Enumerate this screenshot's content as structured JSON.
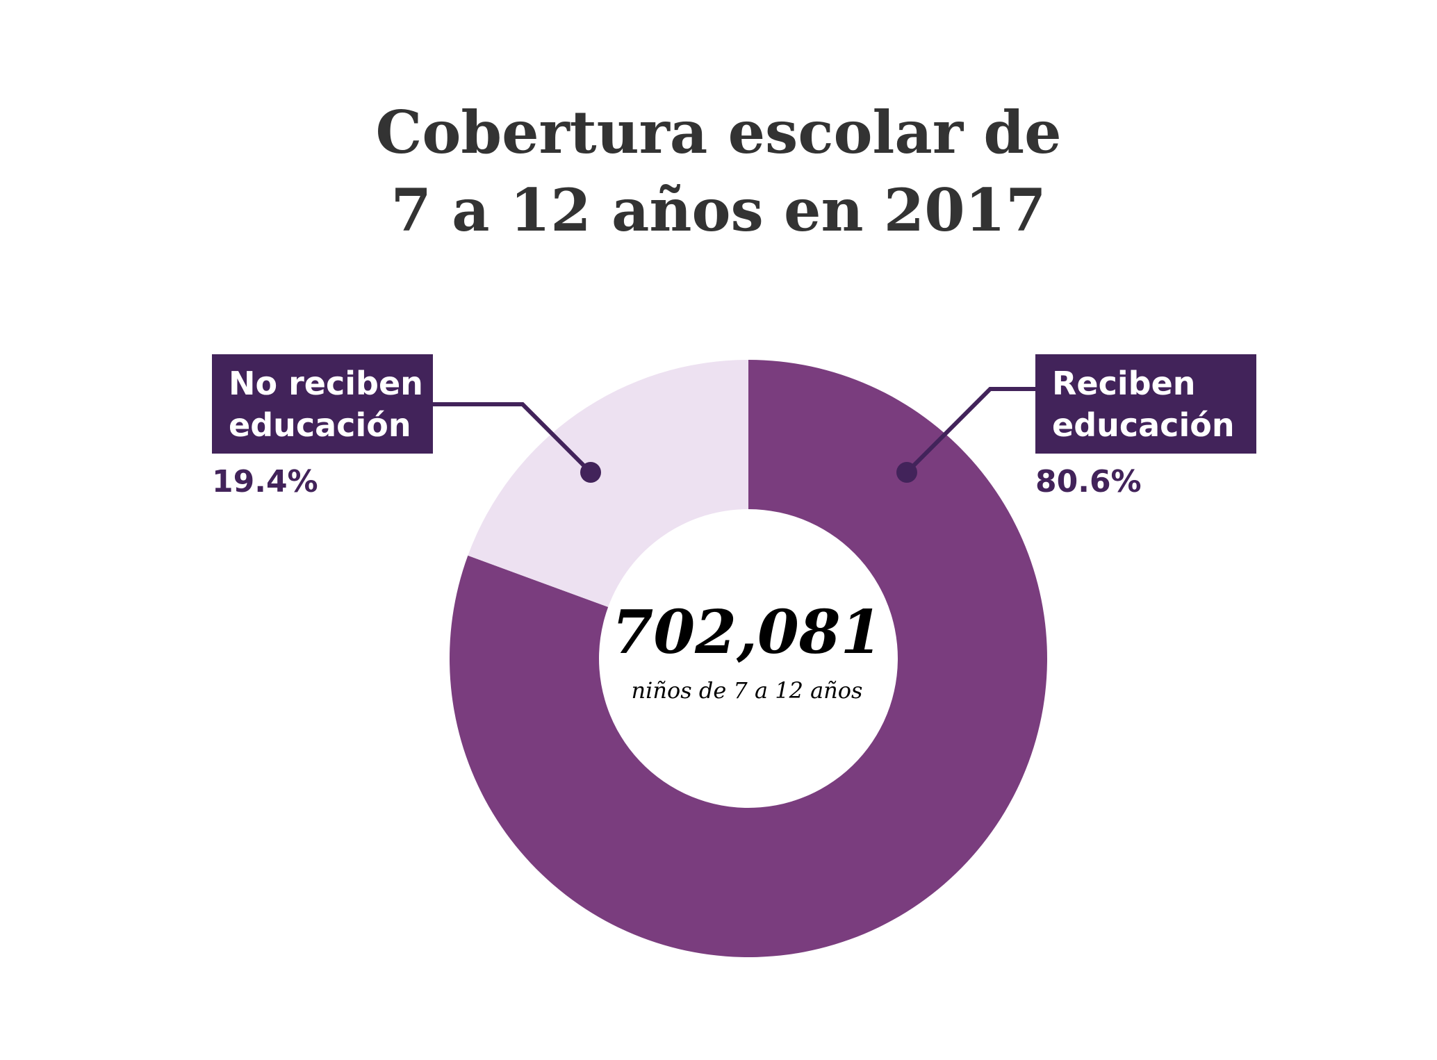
{
  "chart_data": {
    "type": "pie",
    "title": [
      "Cobertura escolar de",
      "7 a 12 años en 2017"
    ],
    "slices": [
      {
        "label": [
          "Reciben",
          "educación"
        ],
        "value": 80.6,
        "value_label": "80.6%",
        "color": "#7a3d7e"
      },
      {
        "label": [
          "No reciben",
          "educación"
        ],
        "value": 19.4,
        "value_label": "19.4%",
        "color": "#ede1f1"
      }
    ],
    "center": {
      "value": "702,081",
      "caption": "niños de 7 a 12 años"
    },
    "colors": {
      "label_box": "#42235a",
      "leader": "#42235a",
      "title": "#333333"
    }
  }
}
